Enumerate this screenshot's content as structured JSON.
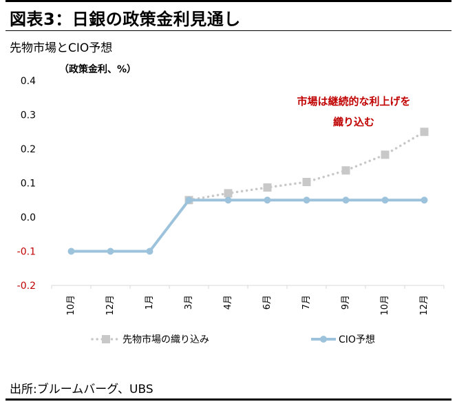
{
  "header": {
    "title": "図表3：日銀の政策金利見通し",
    "subtitle": "先物市場とCIO予想"
  },
  "footer": {
    "source": "出所:ブルームバーグ、UBS"
  },
  "colors": {
    "futures": "#c8c8c8",
    "cio": "#9dc3dc",
    "annotation": "#c00000",
    "negative_tick": "#c00000",
    "axis": "#d9d9d9"
  },
  "chart_data": {
    "type": "line",
    "ylabel": "（政策金利、%）",
    "ylim": [
      -0.2,
      0.4
    ],
    "yticks": [
      "0.4",
      "0.3",
      "0.2",
      "0.1",
      "0.0",
      "-0.1",
      "-0.2"
    ],
    "yticks_values": [
      0.4,
      0.3,
      0.2,
      0.1,
      0.0,
      -0.1,
      -0.2
    ],
    "categories": [
      "10月",
      "12月",
      "1月",
      "3月",
      "4月",
      "6月",
      "7月",
      "9月",
      "10月",
      "12月"
    ],
    "grid": false,
    "legend_position": "bottom",
    "annotation": [
      "市場は継続的な利上げを",
      "織り込む"
    ],
    "series": [
      {
        "name": "先物市場の織り込み",
        "style": "dotted",
        "marker": "square",
        "values": [
          null,
          null,
          null,
          0.05,
          0.07,
          0.087,
          0.103,
          0.137,
          0.183,
          0.25
        ]
      },
      {
        "name": "CIO予想",
        "style": "solid",
        "marker": "circle",
        "values": [
          -0.1,
          -0.1,
          -0.1,
          0.05,
          0.05,
          0.05,
          0.05,
          0.05,
          0.05,
          0.05
        ]
      }
    ]
  }
}
